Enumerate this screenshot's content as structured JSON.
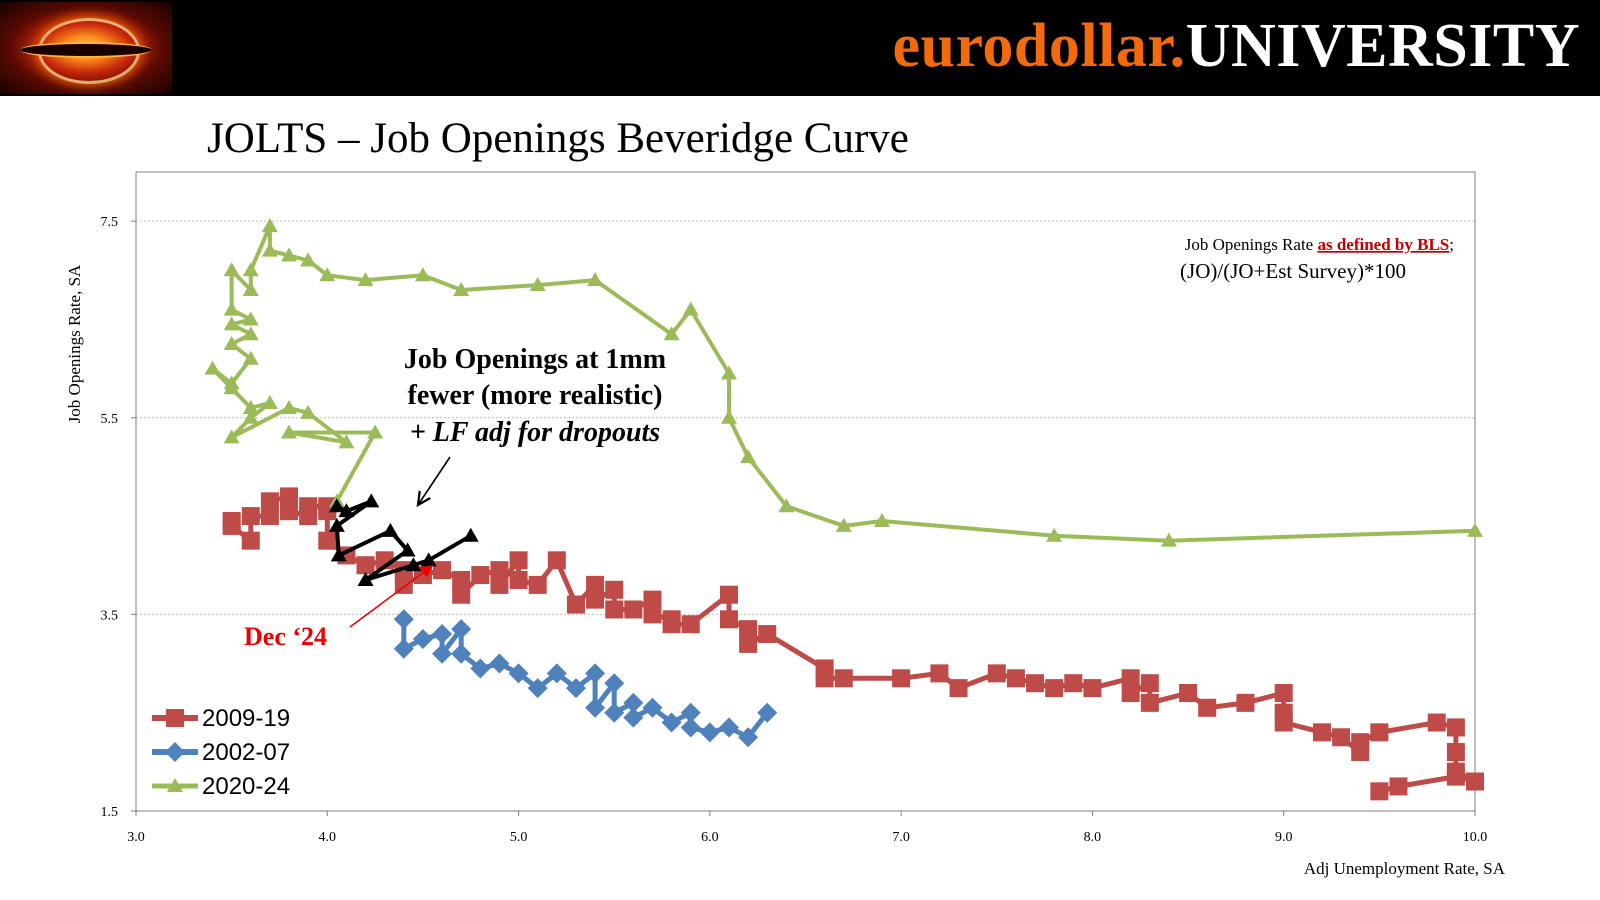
{
  "header": {
    "brand_part1": "eurodollar.",
    "brand_part2": "UNIVERSITY",
    "logo_icon": "black-hole-logo-icon"
  },
  "slide_title": "JOLTS – Job Openings Beveridge Curve",
  "definition": {
    "line1_prefix": "Job Openings Rate ",
    "line1_link": "as defined by BLS",
    "line1_suffix": ";",
    "line2": "(JO)/(JO+Est Survey)*100",
    "link_color": "#c00000"
  },
  "annotation": {
    "line1": "Job Openings at 1mm",
    "line2": "fewer (more realistic)",
    "line3": "+ LF adj for dropouts"
  },
  "callout": {
    "text": "Dec ‘24",
    "color": "#ee0000"
  },
  "chart_data": {
    "type": "line",
    "title": "",
    "xlabel": "Adj Unemployment Rate, SA",
    "ylabel": "Job Openings Rate, SA",
    "xlim": [
      3.0,
      10.0
    ],
    "ylim": [
      1.5,
      8.0
    ],
    "x_ticks": [
      "3.0",
      "4.0",
      "5.0",
      "6.0",
      "7.0",
      "8.0",
      "9.0",
      "10.0"
    ],
    "y_ticks": [
      "1.5",
      "3.5",
      "5.5",
      "7.5"
    ],
    "y_tick_values": [
      1.5,
      3.5,
      5.5,
      7.5
    ],
    "x_tick_values": [
      3,
      4,
      5,
      6,
      7,
      8,
      9,
      10
    ],
    "grid": "horizontal dotted",
    "legend_position": "bottom-left",
    "series": [
      {
        "name": "2009-19",
        "color": "#be4b48",
        "marker": "square",
        "points": [
          [
            9.5,
            1.7
          ],
          [
            9.6,
            1.75
          ],
          [
            9.9,
            1.85
          ],
          [
            10.0,
            1.8
          ],
          [
            9.9,
            1.9
          ],
          [
            9.9,
            2.1
          ],
          [
            9.9,
            2.35
          ],
          [
            9.8,
            2.4
          ],
          [
            9.5,
            2.3
          ],
          [
            9.4,
            2.2
          ],
          [
            9.4,
            2.1
          ],
          [
            9.3,
            2.25
          ],
          [
            9.2,
            2.3
          ],
          [
            9.0,
            2.4
          ],
          [
            9.0,
            2.5
          ],
          [
            9.0,
            2.7
          ],
          [
            8.8,
            2.6
          ],
          [
            8.6,
            2.55
          ],
          [
            8.5,
            2.7
          ],
          [
            8.3,
            2.6
          ],
          [
            8.3,
            2.8
          ],
          [
            8.2,
            2.7
          ],
          [
            8.2,
            2.85
          ],
          [
            8.0,
            2.75
          ],
          [
            7.9,
            2.8
          ],
          [
            7.8,
            2.75
          ],
          [
            7.7,
            2.8
          ],
          [
            7.6,
            2.85
          ],
          [
            7.5,
            2.9
          ],
          [
            7.3,
            2.75
          ],
          [
            7.2,
            2.9
          ],
          [
            7.0,
            2.85
          ],
          [
            6.7,
            2.85
          ],
          [
            6.6,
            2.85
          ],
          [
            6.6,
            2.95
          ],
          [
            6.3,
            3.3
          ],
          [
            6.2,
            3.2
          ],
          [
            6.2,
            3.35
          ],
          [
            6.1,
            3.45
          ],
          [
            6.1,
            3.7
          ],
          [
            5.9,
            3.4
          ],
          [
            5.8,
            3.4
          ],
          [
            5.8,
            3.45
          ],
          [
            5.7,
            3.5
          ],
          [
            5.7,
            3.65
          ],
          [
            5.6,
            3.55
          ],
          [
            5.5,
            3.55
          ],
          [
            5.5,
            3.75
          ],
          [
            5.4,
            3.65
          ],
          [
            5.4,
            3.8
          ],
          [
            5.3,
            3.6
          ],
          [
            5.2,
            4.05
          ],
          [
            5.1,
            3.8
          ],
          [
            5.0,
            3.85
          ],
          [
            5.0,
            4.05
          ],
          [
            4.9,
            3.8
          ],
          [
            4.9,
            3.95
          ],
          [
            4.8,
            3.9
          ],
          [
            4.7,
            3.7
          ],
          [
            4.7,
            3.85
          ],
          [
            4.6,
            3.95
          ],
          [
            4.5,
            3.9
          ],
          [
            4.4,
            3.8
          ],
          [
            4.4,
            3.95
          ],
          [
            4.3,
            4.05
          ],
          [
            4.2,
            4.0
          ],
          [
            4.1,
            4.1
          ],
          [
            4.0,
            4.25
          ],
          [
            4.0,
            4.55
          ],
          [
            4.0,
            4.6
          ],
          [
            3.9,
            4.6
          ],
          [
            3.9,
            4.5
          ],
          [
            3.8,
            4.55
          ],
          [
            3.8,
            4.7
          ],
          [
            3.7,
            4.65
          ],
          [
            3.7,
            4.5
          ],
          [
            3.6,
            4.5
          ],
          [
            3.6,
            4.25
          ],
          [
            3.5,
            4.4
          ],
          [
            3.5,
            4.45
          ]
        ]
      },
      {
        "name": "2002-07",
        "color": "#4f81bd",
        "marker": "diamond",
        "points": [
          [
            6.3,
            2.5
          ],
          [
            6.2,
            2.25
          ],
          [
            6.1,
            2.35
          ],
          [
            6.0,
            2.3
          ],
          [
            5.9,
            2.35
          ],
          [
            5.9,
            2.5
          ],
          [
            5.8,
            2.4
          ],
          [
            5.7,
            2.55
          ],
          [
            5.6,
            2.45
          ],
          [
            5.6,
            2.6
          ],
          [
            5.5,
            2.5
          ],
          [
            5.5,
            2.8
          ],
          [
            5.4,
            2.55
          ],
          [
            5.4,
            2.9
          ],
          [
            5.3,
            2.75
          ],
          [
            5.2,
            2.9
          ],
          [
            5.1,
            2.75
          ],
          [
            5.0,
            2.9
          ],
          [
            4.9,
            3.0
          ],
          [
            4.8,
            2.95
          ],
          [
            4.7,
            3.1
          ],
          [
            4.7,
            3.35
          ],
          [
            4.6,
            3.1
          ],
          [
            4.6,
            3.3
          ],
          [
            4.5,
            3.25
          ],
          [
            4.4,
            3.15
          ],
          [
            4.4,
            3.45
          ]
        ]
      },
      {
        "name": "2020-24",
        "color": "#9bbb59",
        "marker": "triangle",
        "points": [
          [
            10.0,
            4.35
          ],
          [
            8.4,
            4.25
          ],
          [
            7.8,
            4.3
          ],
          [
            6.9,
            4.45
          ],
          [
            6.7,
            4.4
          ],
          [
            6.4,
            4.6
          ],
          [
            6.2,
            5.1
          ],
          [
            6.1,
            5.5
          ],
          [
            6.1,
            5.95
          ],
          [
            5.9,
            6.6
          ],
          [
            5.8,
            6.35
          ],
          [
            5.4,
            6.9
          ],
          [
            5.1,
            6.85
          ],
          [
            4.7,
            6.8
          ],
          [
            4.5,
            6.95
          ],
          [
            4.2,
            6.9
          ],
          [
            4.0,
            6.95
          ],
          [
            3.9,
            7.1
          ],
          [
            3.8,
            7.15
          ],
          [
            3.7,
            7.2
          ],
          [
            3.7,
            7.45
          ],
          [
            3.6,
            7.0
          ],
          [
            3.6,
            6.8
          ],
          [
            3.5,
            7.0
          ],
          [
            3.5,
            6.6
          ],
          [
            3.6,
            6.5
          ],
          [
            3.5,
            6.45
          ],
          [
            3.6,
            6.35
          ],
          [
            3.5,
            6.25
          ],
          [
            3.6,
            6.1
          ],
          [
            3.5,
            5.85
          ],
          [
            3.4,
            6.0
          ],
          [
            3.5,
            5.8
          ],
          [
            3.6,
            5.6
          ],
          [
            3.7,
            5.65
          ],
          [
            3.6,
            5.5
          ],
          [
            3.5,
            5.3
          ],
          [
            3.8,
            5.6
          ],
          [
            3.9,
            5.55
          ],
          [
            4.1,
            5.25
          ],
          [
            3.8,
            5.35
          ],
          [
            4.25,
            5.35
          ],
          [
            4.05,
            4.65
          ]
        ]
      },
      {
        "name": "",
        "color": "#000000",
        "marker": "triangle",
        "points": [
          [
            4.05,
            4.6
          ],
          [
            4.1,
            4.55
          ],
          [
            4.23,
            4.65
          ],
          [
            4.05,
            4.4
          ],
          [
            4.06,
            4.1
          ],
          [
            4.33,
            4.35
          ],
          [
            4.42,
            4.15
          ],
          [
            4.2,
            3.85
          ],
          [
            4.45,
            4.0
          ],
          [
            4.53,
            4.05
          ],
          [
            4.75,
            4.3
          ]
        ]
      }
    ]
  }
}
